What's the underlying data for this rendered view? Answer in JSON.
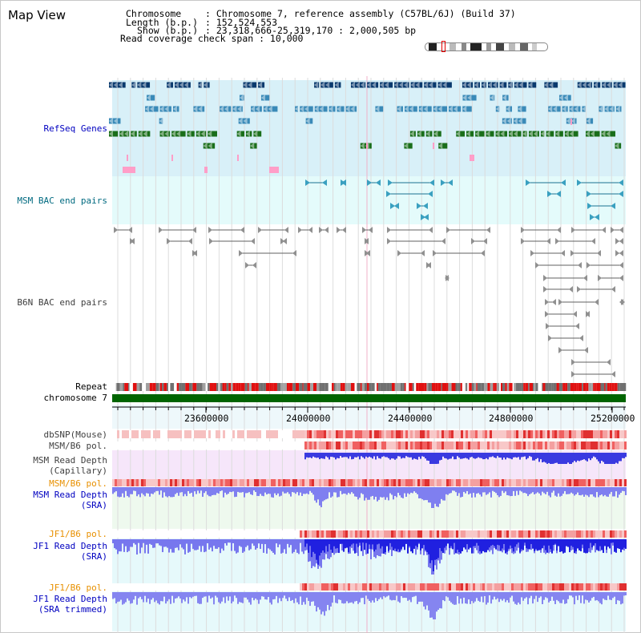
{
  "page": {
    "title": "Map View"
  },
  "header": {
    "chromosome_key": "Chromosome",
    "chromosome_value": ": Chromosome 7, reference assembly (C57BL/6J) (Build 37)",
    "length_key": "Length (b.p.)",
    "length_value": ": 152,524,553",
    "show_key": "Show (b.p.)",
    "show_value": ": 23,318,666-25,319,170 : 2,000,505 bp",
    "coverage_line": "Read coverage check span : 10,000"
  },
  "tracks": {
    "refseq": "RefSeq Genes",
    "msm_bac": "MSM BAC end pairs",
    "b6n_bac": "B6N BAC end pairs",
    "repeat": "Repeat",
    "chromosome": "chromosome 7",
    "dbsnp": "dbSNP(Mouse)",
    "msm_b6_pol_1": "MSM/B6 pol.",
    "msm_depth_cap_1": "MSM Read Depth",
    "msm_depth_cap_2": "(Capillary)",
    "msm_b6_pol_2": "MSM/B6 pol.",
    "msm_depth_sra_1": "MSM Read Depth",
    "msm_depth_sra_2": "(SRA)",
    "jf1_b6_pol_1": "JF1/B6 pol.",
    "jf1_depth_sra_1": "JF1 Read Depth",
    "jf1_depth_sra_2": "(SRA)",
    "jf1_b6_pol_2": "JF1/B6 pol.",
    "jf1_depth_trim_1": "JF1 Read Depth",
    "jf1_depth_trim_2": "(SRA trimmed)"
  },
  "axis": {
    "ticks": [
      "23600000",
      "24000000",
      "24400000",
      "24800000",
      "25200000"
    ]
  },
  "colors": {
    "label_blue": "#0000c0",
    "label_teal": "#006a80",
    "label_gray": "#404040",
    "label_orange": "#e89000",
    "refseq_bg": "#d8f0f8",
    "msm_bac_bg": "#e4fbfb",
    "chromosome_bar": "#006400"
  }
}
